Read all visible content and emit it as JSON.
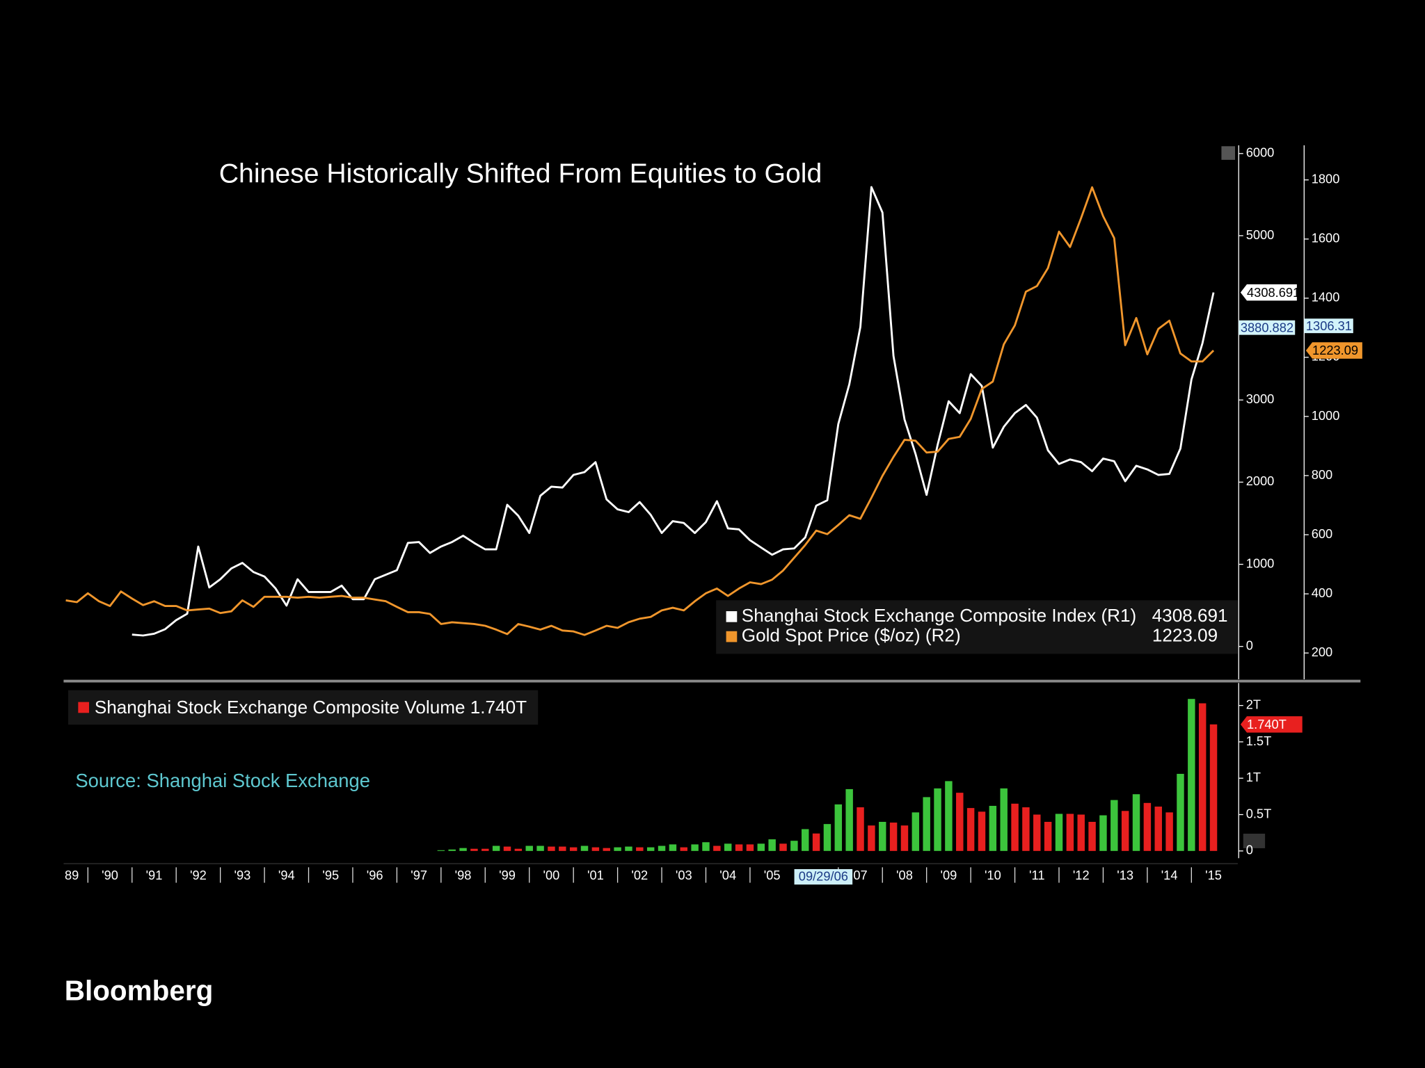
{
  "chart_data": [
    {
      "type": "line",
      "title": "Chinese Historically Shifted From Equities to Gold",
      "x": [
        1989.5,
        1989.75,
        1990,
        1990.25,
        1990.5,
        1990.75,
        1991,
        1991.25,
        1991.5,
        1991.75,
        1992,
        1992.25,
        1992.5,
        1992.75,
        1993,
        1993.25,
        1993.5,
        1993.75,
        1994,
        1994.25,
        1994.5,
        1994.75,
        1995,
        1995.25,
        1995.5,
        1995.75,
        1996,
        1996.25,
        1996.5,
        1996.75,
        1997,
        1997.25,
        1997.5,
        1997.75,
        1998,
        1998.25,
        1998.5,
        1998.75,
        1999,
        1999.25,
        1999.5,
        1999.75,
        2000,
        2000.25,
        2000.5,
        2000.75,
        2001,
        2001.25,
        2001.5,
        2001.75,
        2002,
        2002.25,
        2002.5,
        2002.75,
        2003,
        2003.25,
        2003.5,
        2003.75,
        2004,
        2004.25,
        2004.5,
        2004.75,
        2005,
        2005.25,
        2005.5,
        2005.75,
        2006,
        2006.25,
        2006.5,
        2006.75,
        2007,
        2007.25,
        2007.5,
        2007.75,
        2008,
        2008.25,
        2008.5,
        2008.75,
        2009,
        2009.25,
        2009.5,
        2009.75,
        2010,
        2010.25,
        2010.5,
        2010.75,
        2011,
        2011.25,
        2011.5,
        2011.75,
        2012,
        2012.25,
        2012.5,
        2012.75,
        2013,
        2013.25,
        2013.5,
        2013.75,
        2014,
        2014.25,
        2014.5,
        2014.75,
        2015,
        2015.25,
        2015.5
      ],
      "xlim": [
        1989.45,
        2016.05
      ],
      "xticks": [
        {
          "value": 1989,
          "label": "89"
        },
        {
          "value": 1990,
          "label": "'90"
        },
        {
          "value": 1991,
          "label": "'91"
        },
        {
          "value": 1992,
          "label": "'92"
        },
        {
          "value": 1993,
          "label": "'93"
        },
        {
          "value": 1994,
          "label": "'94"
        },
        {
          "value": 1995,
          "label": "'95"
        },
        {
          "value": 1996,
          "label": "'96"
        },
        {
          "value": 1997,
          "label": "'97"
        },
        {
          "value": 1998,
          "label": "'98"
        },
        {
          "value": 1999,
          "label": "'99"
        },
        {
          "value": 2000,
          "label": "'00"
        },
        {
          "value": 2001,
          "label": "'01"
        },
        {
          "value": 2002,
          "label": "'02"
        },
        {
          "value": 2003,
          "label": "'03"
        },
        {
          "value": 2004,
          "label": "'04"
        },
        {
          "value": 2005,
          "label": "'05"
        },
        {
          "value": 2007,
          "label": "07"
        },
        {
          "value": 2008,
          "label": "'08"
        },
        {
          "value": 2009,
          "label": "'09"
        },
        {
          "value": 2010,
          "label": "'10"
        },
        {
          "value": 2011,
          "label": "'11"
        },
        {
          "value": 2012,
          "label": "'12"
        },
        {
          "value": 2013,
          "label": "'13"
        },
        {
          "value": 2014,
          "label": "'14"
        },
        {
          "value": 2015,
          "label": "'15"
        }
      ],
      "cursor_label": "09/29/06",
      "ylim": [
        -400,
        6100
      ],
      "yticks": [
        0,
        1000,
        2000,
        3000,
        5000,
        6000
      ],
      "y2lim": [
        111,
        1917
      ],
      "y2ticks": [
        200,
        400,
        600,
        800,
        1000,
        1200,
        1400,
        1600,
        1800
      ],
      "series": [
        {
          "name": "Shanghai Stock Exchange Composite Index (R1)",
          "color": "#ffffff",
          "axis": "y",
          "values": [
            null,
            null,
            null,
            null,
            null,
            null,
            144,
            133,
            155,
            210,
            320,
            398,
            1216,
            718,
            818,
            950,
            1017,
            906,
            851,
            707,
            497,
            818,
            663,
            663,
            663,
            740,
            575,
            575,
            818,
            873,
            928,
            1260,
            1271,
            1138,
            1216,
            1271,
            1348,
            1260,
            1182,
            1182,
            1724,
            1591,
            1381,
            1834,
            1945,
            1934,
            2088,
            2122,
            2243,
            1790,
            1669,
            1635,
            1757,
            1602,
            1381,
            1525,
            1503,
            1381,
            1514,
            1768,
            1437,
            1425,
            1293,
            1204,
            1116,
            1182,
            1193,
            1326,
            1713,
            1779,
            2707,
            3193,
            3890,
            5591,
            5282,
            3536,
            2763,
            2343,
            1845,
            2453,
            2984,
            2840,
            3315,
            3171,
            2420,
            2674,
            2840,
            2939,
            2785,
            2387,
            2221,
            2276,
            2243,
            2133,
            2287,
            2254,
            2011,
            2199,
            2155,
            2088,
            2100,
            2409,
            3249,
            3691,
            4308.691
          ]
        },
        {
          "name": "Gold Spot Price ($/oz) (R2)",
          "color": "#f0962c",
          "axis": "y2",
          "values": [
            378,
            372,
            402,
            375,
            359,
            408,
            384,
            362,
            375,
            359,
            359,
            344,
            347,
            350,
            335,
            341,
            378,
            356,
            390,
            390,
            390,
            387,
            390,
            387,
            390,
            393,
            387,
            387,
            381,
            375,
            356,
            338,
            338,
            332,
            298,
            304,
            301,
            298,
            292,
            279,
            264,
            298,
            289,
            279,
            292,
            276,
            273,
            261,
            276,
            292,
            285,
            304,
            316,
            322,
            344,
            353,
            344,
            375,
            402,
            418,
            393,
            418,
            439,
            433,
            448,
            479,
            522,
            565,
            614,
            602,
            633,
            666,
            654,
            725,
            799,
            863,
            921,
            918,
            878,
            881,
            924,
            931,
            992,
            1093,
            1118,
            1244,
            1308,
            1422,
            1441,
            1502,
            1625,
            1573,
            1671,
            1775,
            1677,
            1603,
            1241,
            1333,
            1210,
            1296,
            1324,
            1213,
            1186,
            1186,
            1223.09
          ]
        }
      ],
      "markers": [
        {
          "axis": "y",
          "value": 3880.882
        },
        {
          "axis": "y2",
          "value": 1306.31
        }
      ]
    },
    {
      "type": "bar",
      "x": [
        1998,
        1998.25,
        1998.5,
        1998.75,
        1999,
        1999.25,
        1999.5,
        1999.75,
        2000,
        2000.25,
        2000.5,
        2000.75,
        2001,
        2001.25,
        2001.5,
        2001.75,
        2002,
        2002.25,
        2002.5,
        2002.75,
        2003,
        2003.25,
        2003.5,
        2003.75,
        2004,
        2004.25,
        2004.5,
        2004.75,
        2005,
        2005.25,
        2005.5,
        2005.75,
        2006,
        2006.25,
        2006.5,
        2006.75,
        2007,
        2007.25,
        2007.5,
        2007.75,
        2008,
        2008.25,
        2008.5,
        2008.75,
        2009,
        2009.25,
        2009.5,
        2009.75,
        2010,
        2010.25,
        2010.5,
        2010.75,
        2011,
        2011.25,
        2011.5,
        2011.75,
        2012,
        2012.25,
        2012.5,
        2012.75,
        2013,
        2013.25,
        2013.5,
        2013.75,
        2014,
        2014.25,
        2014.5,
        2014.75,
        2015,
        2015.25,
        2015.5
      ],
      "ylim": [
        -0.1,
        2.31
      ],
      "yticks": [
        0,
        {
          "value": 0.5,
          "label": "0.5T"
        },
        {
          "value": 1,
          "label": "1T"
        },
        {
          "value": 1.5,
          "label": "1.5T"
        },
        {
          "value": 2,
          "label": "2T"
        }
      ],
      "series": [
        {
          "name": "Shanghai Stock Exchange Composite Volume",
          "values": [
            0.01,
            0.02,
            0.04,
            0.03,
            0.03,
            0.07,
            0.06,
            0.03,
            0.07,
            0.07,
            0.06,
            0.06,
            0.05,
            0.07,
            0.05,
            0.04,
            0.05,
            0.06,
            0.05,
            0.05,
            0.07,
            0.09,
            0.05,
            0.09,
            0.12,
            0.07,
            0.1,
            0.09,
            0.09,
            0.1,
            0.16,
            0.1,
            0.14,
            0.3,
            0.24,
            0.37,
            0.64,
            0.85,
            0.6,
            0.35,
            0.4,
            0.39,
            0.35,
            0.53,
            0.74,
            0.86,
            0.96,
            0.8,
            0.59,
            0.54,
            0.62,
            0.86,
            0.65,
            0.6,
            0.5,
            0.4,
            0.51,
            0.51,
            0.5,
            0.4,
            0.49,
            0.7,
            0.55,
            0.78,
            0.66,
            0.61,
            0.53,
            1.06,
            2.09,
            2.03,
            1.74
          ],
          "colors": [
            "#3cc43c",
            "#3cc43c",
            "#3cc43c",
            "#e8201f",
            "#e8201f",
            "#3cc43c",
            "#e8201f",
            "#e8201f",
            "#3cc43c",
            "#3cc43c",
            "#e8201f",
            "#e8201f",
            "#e8201f",
            "#3cc43c",
            "#e8201f",
            "#e8201f",
            "#3cc43c",
            "#3cc43c",
            "#e8201f",
            "#3cc43c",
            "#3cc43c",
            "#3cc43c",
            "#e8201f",
            "#3cc43c",
            "#3cc43c",
            "#e8201f",
            "#3cc43c",
            "#e8201f",
            "#e8201f",
            "#3cc43c",
            "#3cc43c",
            "#e8201f",
            "#3cc43c",
            "#3cc43c",
            "#e8201f",
            "#3cc43c",
            "#3cc43c",
            "#3cc43c",
            "#e8201f",
            "#e8201f",
            "#3cc43c",
            "#e8201f",
            "#e8201f",
            "#3cc43c",
            "#3cc43c",
            "#3cc43c",
            "#3cc43c",
            "#e8201f",
            "#e8201f",
            "#e8201f",
            "#3cc43c",
            "#3cc43c",
            "#e8201f",
            "#e8201f",
            "#e8201f",
            "#e8201f",
            "#3cc43c",
            "#e8201f",
            "#e8201f",
            "#e8201f",
            "#3cc43c",
            "#3cc43c",
            "#e8201f",
            "#3cc43c",
            "#e8201f",
            "#e8201f",
            "#e8201f",
            "#3cc43c",
            "#3cc43c",
            "#e8201f",
            "#e8201f"
          ],
          "value_labels": [
            null,
            null,
            null,
            null,
            null,
            null,
            null,
            null,
            null,
            null,
            null,
            null,
            null,
            null,
            null,
            null,
            null,
            null,
            null,
            null,
            null,
            null,
            null,
            null,
            null,
            null,
            null,
            null,
            null,
            null,
            null,
            null,
            null,
            null,
            null,
            null,
            null,
            null,
            null,
            null,
            null,
            null,
            null,
            null,
            null,
            null,
            null,
            null,
            null,
            null,
            null,
            null,
            null,
            null,
            null,
            null,
            null,
            null,
            null,
            null,
            null,
            null,
            null,
            null,
            null,
            null,
            null,
            null,
            null,
            null,
            "1.740T"
          ]
        }
      ]
    }
  ],
  "source": "Source: Shanghai Stock Exchange",
  "brand": "Bloomberg"
}
